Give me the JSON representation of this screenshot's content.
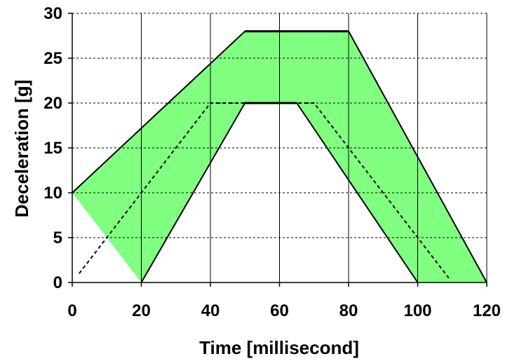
{
  "chart_data": {
    "type": "area",
    "title": "",
    "xlabel": "Time [millisecond]",
    "ylabel": "Deceleration [g]",
    "xlim": [
      0,
      120
    ],
    "ylim": [
      0,
      30
    ],
    "x_ticks": [
      0,
      20,
      40,
      60,
      80,
      100,
      120
    ],
    "y_ticks": [
      0,
      5,
      10,
      15,
      20,
      25,
      30
    ],
    "grid": {
      "vertical": "solid",
      "horizontal": "dashed"
    },
    "colors": {
      "band_fill": "#80ff80",
      "band_edge": "#000000",
      "grid": "#000000"
    },
    "band": {
      "upper": {
        "x": [
          0,
          50,
          80,
          120
        ],
        "y": [
          10,
          28,
          28,
          0
        ]
      },
      "lower": {
        "x": [
          20,
          50,
          65,
          100
        ],
        "y": [
          0,
          20,
          20,
          0
        ]
      }
    },
    "series": [
      {
        "style": "dashed",
        "x": [
          2,
          40,
          70,
          109
        ],
        "y": [
          1,
          20,
          20,
          0.5
        ]
      }
    ]
  }
}
